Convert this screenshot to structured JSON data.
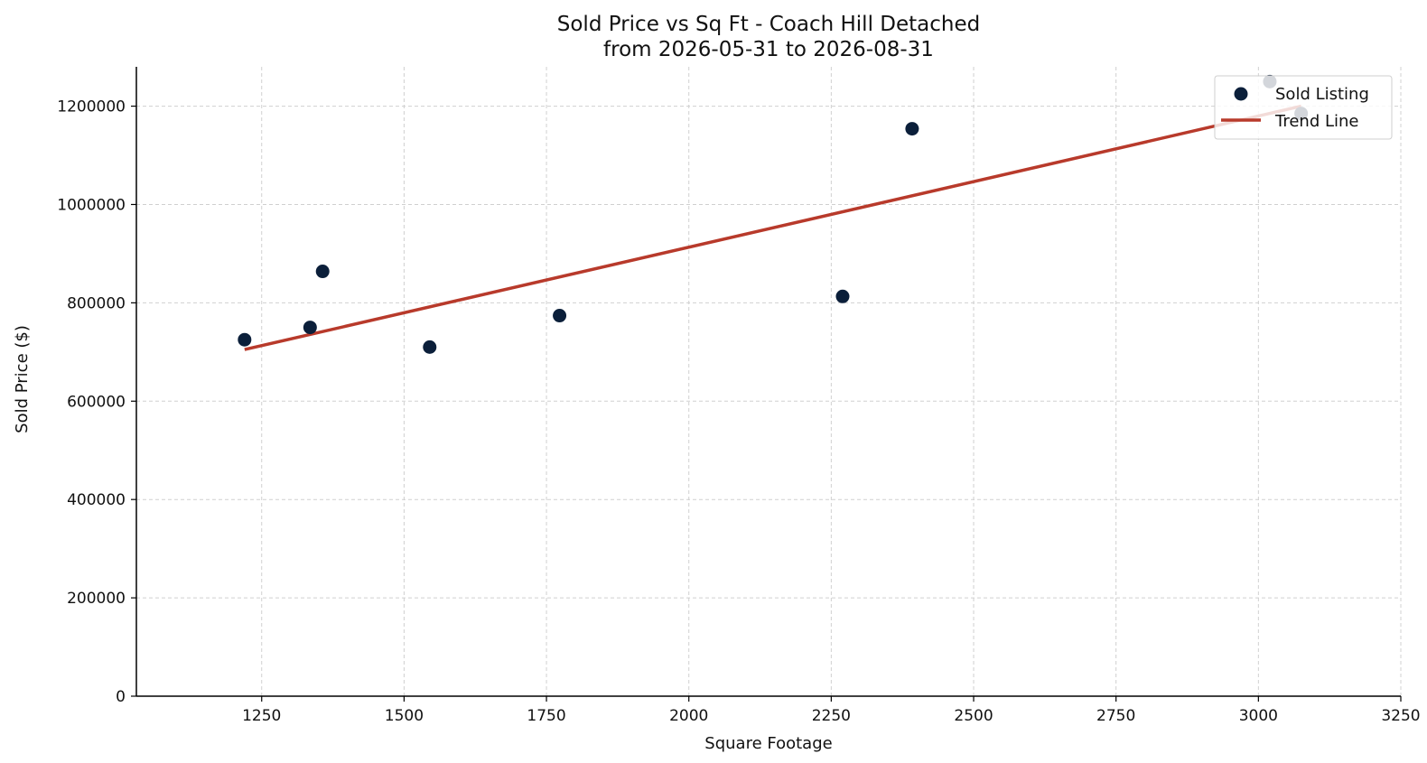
{
  "chart_data": {
    "type": "scatter",
    "title": "Sold Price vs Sq Ft - Coach Hill Detached",
    "subtitle": "from 2026-05-31 to 2026-08-31",
    "xlabel": "Square Footage",
    "ylabel": "Sold Price ($)",
    "xlim": [
      1030,
      3250
    ],
    "ylim": [
      0,
      1280000
    ],
    "xticks": [
      1250,
      1500,
      1750,
      2000,
      2250,
      2500,
      2750,
      3000,
      3250
    ],
    "yticks": [
      0,
      200000,
      400000,
      600000,
      800000,
      1000000,
      1200000
    ],
    "grid": true,
    "legend_position": "top-right",
    "series": [
      {
        "name": "Sold Listing",
        "kind": "scatter",
        "color": "#0b1f3a",
        "points": [
          {
            "x": 1220,
            "y": 725000
          },
          {
            "x": 1335,
            "y": 750000
          },
          {
            "x": 1357,
            "y": 864000
          },
          {
            "x": 1545,
            "y": 710000
          },
          {
            "x": 1773,
            "y": 774000
          },
          {
            "x": 2270,
            "y": 813000
          },
          {
            "x": 2392,
            "y": 1154000
          },
          {
            "x": 3020,
            "y": 1250000
          },
          {
            "x": 3075,
            "y": 1185000
          }
        ]
      },
      {
        "name": "Trend Line",
        "kind": "line",
        "color": "#b83a2b",
        "points": [
          {
            "x": 1220,
            "y": 705000
          },
          {
            "x": 3075,
            "y": 1200000
          }
        ]
      }
    ]
  }
}
